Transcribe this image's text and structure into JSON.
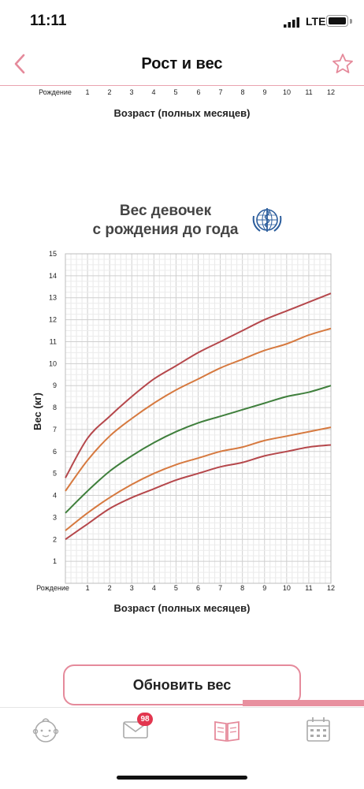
{
  "status_bar": {
    "time": "11:11",
    "network": "LTE"
  },
  "nav": {
    "title": "Рост и вес"
  },
  "top_axis": {
    "ticks": [
      "Рождение",
      "1",
      "2",
      "3",
      "4",
      "5",
      "6",
      "7",
      "8",
      "9",
      "10",
      "11",
      "12"
    ],
    "xlabel": "Возраст (полных месяцев)"
  },
  "chart_title_line1": "Вес девочек",
  "chart_title_line2": "с рождения до года",
  "chart_data": {
    "type": "line",
    "title": "Вес девочек с рождения до года",
    "xlabel": "Возраст (полных месяцев)",
    "ylabel": "Вес (кг)",
    "x": [
      0,
      1,
      2,
      3,
      4,
      5,
      6,
      7,
      8,
      9,
      10,
      11,
      12
    ],
    "x_tick_labels": [
      "Рождение",
      "1",
      "2",
      "3",
      "4",
      "5",
      "6",
      "7",
      "8",
      "9",
      "10",
      "11",
      "12"
    ],
    "y_ticks": [
      1,
      2,
      3,
      4,
      5,
      6,
      7,
      8,
      9,
      10,
      11,
      12,
      13,
      14,
      15
    ],
    "xlim": [
      0,
      12
    ],
    "ylim": [
      0,
      15
    ],
    "grid": true,
    "series": [
      {
        "color": "#b5474b",
        "values": [
          4.8,
          6.6,
          7.6,
          8.5,
          9.3,
          9.9,
          10.5,
          11.0,
          11.5,
          12.0,
          12.4,
          12.8,
          13.2
        ]
      },
      {
        "color": "#d6793f",
        "values": [
          4.2,
          5.6,
          6.7,
          7.5,
          8.2,
          8.8,
          9.3,
          9.8,
          10.2,
          10.6,
          10.9,
          11.3,
          11.6
        ]
      },
      {
        "color": "#3f7f3c",
        "values": [
          3.2,
          4.2,
          5.1,
          5.8,
          6.4,
          6.9,
          7.3,
          7.6,
          7.9,
          8.2,
          8.5,
          8.7,
          9.0
        ]
      },
      {
        "color": "#d6793f",
        "values": [
          2.4,
          3.2,
          3.9,
          4.5,
          5.0,
          5.4,
          5.7,
          6.0,
          6.2,
          6.5,
          6.7,
          6.9,
          7.1
        ]
      },
      {
        "color": "#b5474b",
        "values": [
          2.0,
          2.7,
          3.4,
          3.9,
          4.3,
          4.7,
          5.0,
          5.3,
          5.5,
          5.8,
          6.0,
          6.2,
          6.3
        ]
      }
    ]
  },
  "update_button": {
    "label": "Обновить вес"
  },
  "tabbar": {
    "badge": "98"
  },
  "colors": {
    "accent": "#e58a9b",
    "badge": "#e2364f"
  }
}
